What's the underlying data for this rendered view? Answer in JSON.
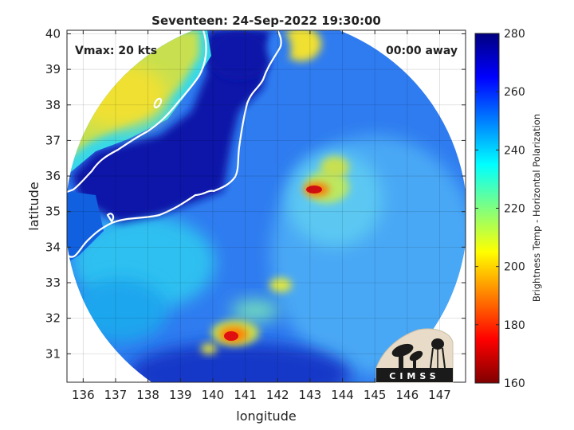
{
  "chart_data": {
    "type": "heatmap",
    "title": "Seventeen: 24-Sep-2022 19:30:00",
    "xlabel": "longitude",
    "ylabel": "latitude",
    "xlim": [
      135.5,
      147.8
    ],
    "ylim": [
      30.2,
      40.1
    ],
    "x_ticks": [
      136,
      137,
      138,
      139,
      140,
      141,
      142,
      143,
      144,
      145,
      146,
      147
    ],
    "y_ticks": [
      31,
      32,
      33,
      34,
      35,
      36,
      37,
      38,
      39,
      40
    ],
    "grid": true,
    "annotations": {
      "vmax": "Vmax: 20 kts",
      "time_away": "00:00 away"
    },
    "colorbar": {
      "label": "Brightness Temp - Horizontal Polarization",
      "min": 160,
      "max": 280,
      "ticks": [
        160,
        180,
        200,
        220,
        240,
        260,
        280
      ],
      "colormap": "jet",
      "placement": "right"
    },
    "swath": {
      "center_lon": 141.5,
      "center_lat": 35.2,
      "shape": "circle"
    },
    "features": [
      {
        "name": "warm-land-northwest",
        "lon": 137.5,
        "lat": 38.8,
        "value": 210
      },
      {
        "name": "warm-land-north",
        "lon": 142.0,
        "lat": 39.8,
        "value": 205
      },
      {
        "name": "cold-ocean-bay",
        "lon": 139.5,
        "lat": 36.5,
        "value": 272
      },
      {
        "name": "cold-ocean-north",
        "lon": 140.5,
        "lat": 39.0,
        "value": 270
      },
      {
        "name": "convection-east",
        "lon": 143.0,
        "lat": 35.6,
        "value": 180
      },
      {
        "name": "convection-south",
        "lon": 140.8,
        "lat": 31.5,
        "value": 178
      },
      {
        "name": "band-mid",
        "lon": 142.2,
        "lat": 33.0,
        "value": 215
      },
      {
        "name": "background-east",
        "lon": 145.5,
        "lat": 34.5,
        "value": 245
      }
    ]
  },
  "logo": {
    "text": "CIMSS"
  }
}
